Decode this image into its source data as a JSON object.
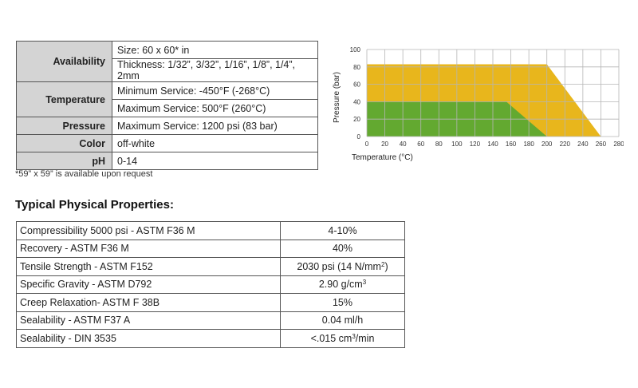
{
  "specs": {
    "availability_label": "Availability",
    "size": "Size: 60 x 60* in",
    "thickness": "Thickness: 1/32”, 3/32”, 1/16”, 1/8”, 1/4”, 2mm",
    "temperature_label": "Temperature",
    "min_service": "Minimum Service:  -450°F (-268°C)",
    "max_service": "Maximum Service: 500°F (260°C)",
    "pressure_label": "Pressure",
    "pressure_value": "Maximum Service: 1200 psi (83 bar)",
    "color_label": "Color",
    "color_value": "off-white",
    "ph_label": "pH",
    "ph_value": "0-14"
  },
  "footnote": "*59” x 59” is available upon request",
  "properties": {
    "title": "Typical Physical  Properties:",
    "rows": [
      {
        "name": "Compressibility 5000 psi - ASTM F36 M",
        "value": "4-10%"
      },
      {
        "name": "Recovery - ASTM F36 M",
        "value": "40%"
      },
      {
        "name": "Tensile Strength - ASTM F152",
        "value": "2030 psi (14 N/mm",
        "sup": "2",
        "after": ")"
      },
      {
        "name": "Specific Gravity - ASTM D792",
        "value": "2.90 g/cm",
        "sup": "3",
        "after": ""
      },
      {
        "name": "Creep Relaxation- ASTM F 38B",
        "value": "15%"
      },
      {
        "name": "Sealability - ASTM F37 A",
        "value": "0.04 ml/h"
      },
      {
        "name": "Sealability - DIN 3535",
        "value": "<.015 cm",
        "sup": "3",
        "after": "/min"
      }
    ]
  },
  "chart_data": {
    "type": "area",
    "xlabel": "Temperature (°C)",
    "ylabel": "Pressure (bar)",
    "xlim": [
      0,
      280
    ],
    "ylim": [
      0,
      100
    ],
    "xticks": [
      0,
      20,
      40,
      60,
      80,
      100,
      120,
      140,
      160,
      180,
      200,
      220,
      240,
      260,
      280
    ],
    "yticks": [
      0,
      20,
      40,
      60,
      80,
      100
    ],
    "grid": true,
    "series": [
      {
        "color": "#e8b61c",
        "points": [
          [
            0,
            0
          ],
          [
            0,
            83
          ],
          [
            200,
            83
          ],
          [
            260,
            0
          ]
        ]
      },
      {
        "color": "#63a930",
        "points": [
          [
            0,
            0
          ],
          [
            0,
            40
          ],
          [
            155,
            40
          ],
          [
            200,
            0
          ]
        ]
      }
    ]
  }
}
